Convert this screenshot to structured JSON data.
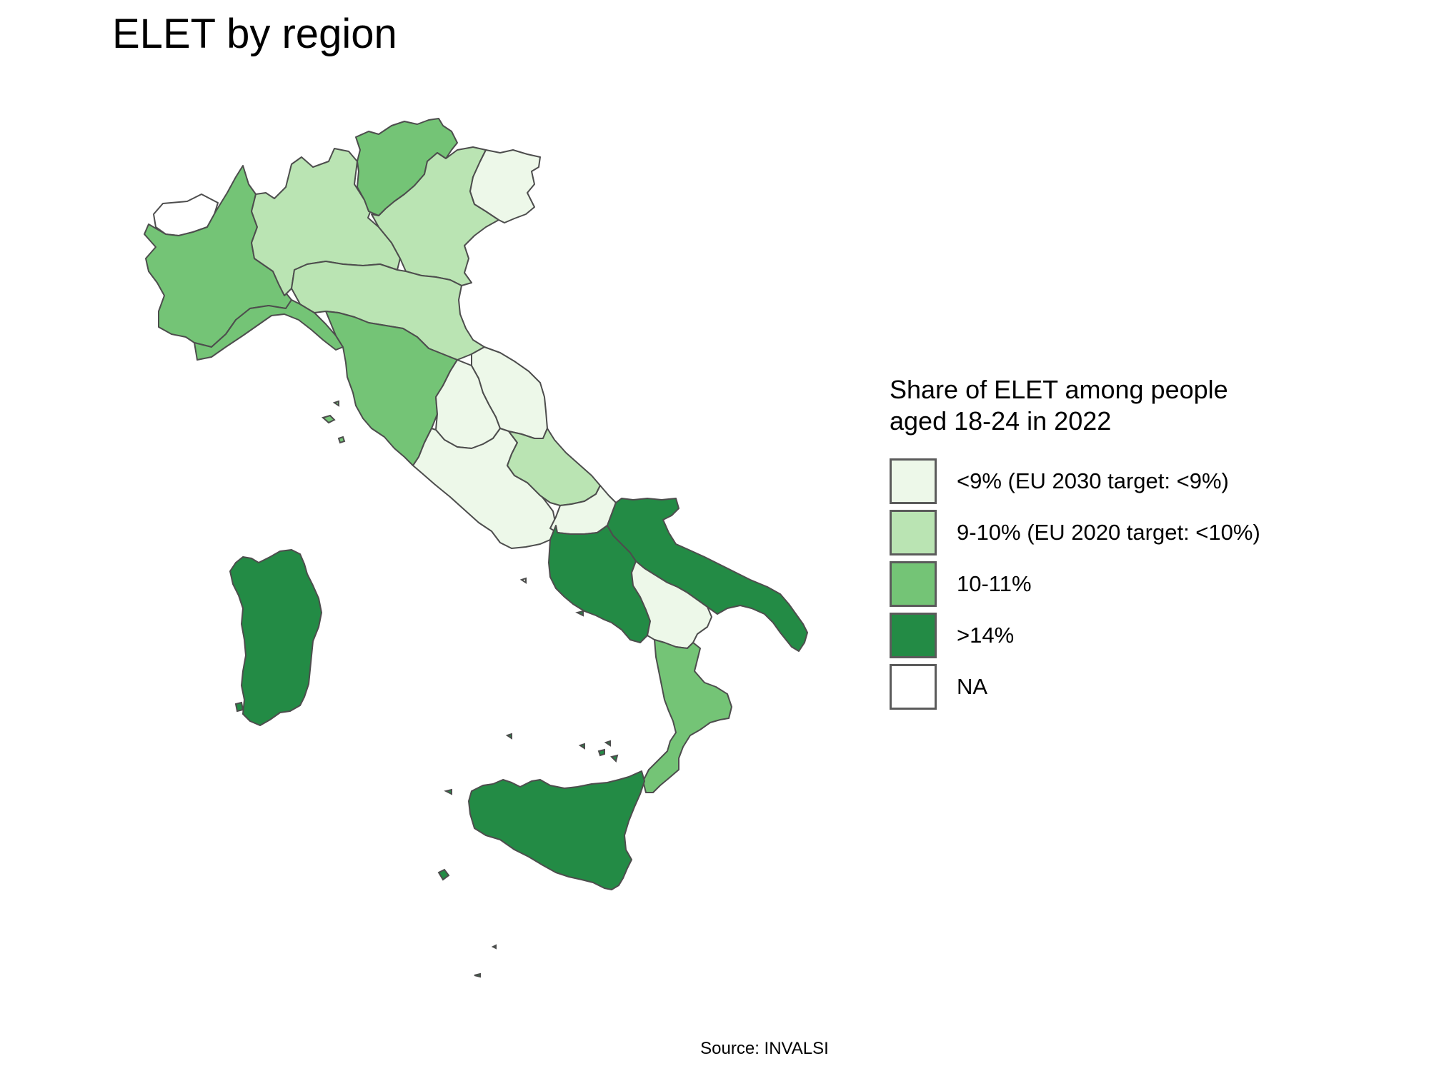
{
  "title": "ELET by region",
  "legend": {
    "title": "Share of ELET among people aged 18-24 in 2022",
    "items": [
      {
        "label": "<9% (EU 2030 target: <9%)",
        "color": "#edf8e9"
      },
      {
        "label": "9-10% (EU 2020 target: <10%)",
        "color": "#bae4b3"
      },
      {
        "label": "10-11%",
        "color": "#74c476"
      },
      {
        "label": ">14%",
        "color": "#238b45"
      },
      {
        "label": "NA",
        "color": "#ffffff"
      }
    ]
  },
  "caption": "Source: INVALSI",
  "map_data": {
    "regions": [
      {
        "name": "Valle d'Aosta",
        "category": "NA"
      },
      {
        "name": "Piemonte",
        "category": "10-11%"
      },
      {
        "name": "Lombardia",
        "category": "9-10% (EU 2020 target: <10%)"
      },
      {
        "name": "Trentino-Alto Adige",
        "category": "10-11%"
      },
      {
        "name": "Veneto",
        "category": "9-10% (EU 2020 target: <10%)"
      },
      {
        "name": "Friuli-Venezia Giulia",
        "category": "<9% (EU 2030 target: <9%)"
      },
      {
        "name": "Liguria",
        "category": "10-11%"
      },
      {
        "name": "Emilia-Romagna",
        "category": "9-10% (EU 2020 target: <10%)"
      },
      {
        "name": "Toscana",
        "category": "10-11%"
      },
      {
        "name": "Umbria",
        "category": "<9% (EU 2030 target: <9%)"
      },
      {
        "name": "Marche",
        "category": "<9% (EU 2030 target: <9%)"
      },
      {
        "name": "Lazio",
        "category": "<9% (EU 2030 target: <9%)"
      },
      {
        "name": "Abruzzo",
        "category": "9-10% (EU 2020 target: <10%)"
      },
      {
        "name": "Molise",
        "category": "<9% (EU 2030 target: <9%)"
      },
      {
        "name": "Campania",
        "category": ">14%"
      },
      {
        "name": "Puglia",
        "category": ">14%"
      },
      {
        "name": "Basilicata",
        "category": "<9% (EU 2030 target: <9%)"
      },
      {
        "name": "Calabria",
        "category": "10-11%"
      },
      {
        "name": "Sicilia",
        "category": ">14%"
      },
      {
        "name": "Sardegna",
        "category": ">14%"
      }
    ]
  }
}
